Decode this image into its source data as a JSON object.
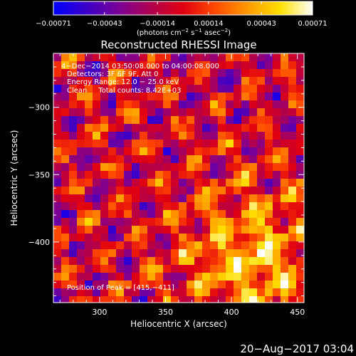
{
  "chart_data": {
    "type": "heatmap",
    "title": "Reconstructed RHESSI Image",
    "xlabel": "Heliocentric X (arcsec)",
    "ylabel": "Heliocentric Y (arcsec)",
    "xlim": [
      265,
      455
    ],
    "ylim": [
      -445,
      -260
    ],
    "x_ticks": [
      {
        "value": 300,
        "label": "300"
      },
      {
        "value": 350,
        "label": "350"
      },
      {
        "value": 400,
        "label": "400"
      },
      {
        "value": 450,
        "label": "450"
      }
    ],
    "y_ticks": [
      {
        "value": -300,
        "label": "−300"
      },
      {
        "value": -350,
        "label": "−350"
      },
      {
        "value": -400,
        "label": "−400"
      }
    ],
    "colorbar": {
      "min": -0.00071,
      "max": 0.00071,
      "colormap": [
        "#0000ff",
        "#3a00c8",
        "#7a0098",
        "#b00050",
        "#e00010",
        "#ff4a00",
        "#ff9a00",
        "#ffe000",
        "#ffffff"
      ],
      "tick_labels": [
        "−0.00071",
        "−0.00043",
        "−0.00014",
        "0.00014",
        "0.00043",
        "0.00071"
      ],
      "tick_values": [
        -0.00071,
        -0.00043,
        -0.00014,
        0.00014,
        0.00043,
        0.00071
      ],
      "units_main": "(photons cm",
      "units_exp1": "−2",
      "units_mid": " s",
      "units_exp2": "−1",
      "units_mid2": " asec",
      "units_exp3": "−2",
      "units_end": ")"
    },
    "annotations": {
      "time_range": "4−Dec−2014 03:50:08.000 to 04:00:08.000",
      "detectors": "Detectors: 3F 6F 9F, Att 0",
      "energy": "Energy Range: 12.0 − 25.0 keV",
      "clean": "Clean     Total counts: 8.42E+03",
      "peak": "Position of Peak = [415,−411]"
    },
    "peak_position": [
      415,
      -411
    ],
    "total_counts": 8420
  },
  "footer": {
    "timestamp": "20−Aug−2017 03:04"
  }
}
